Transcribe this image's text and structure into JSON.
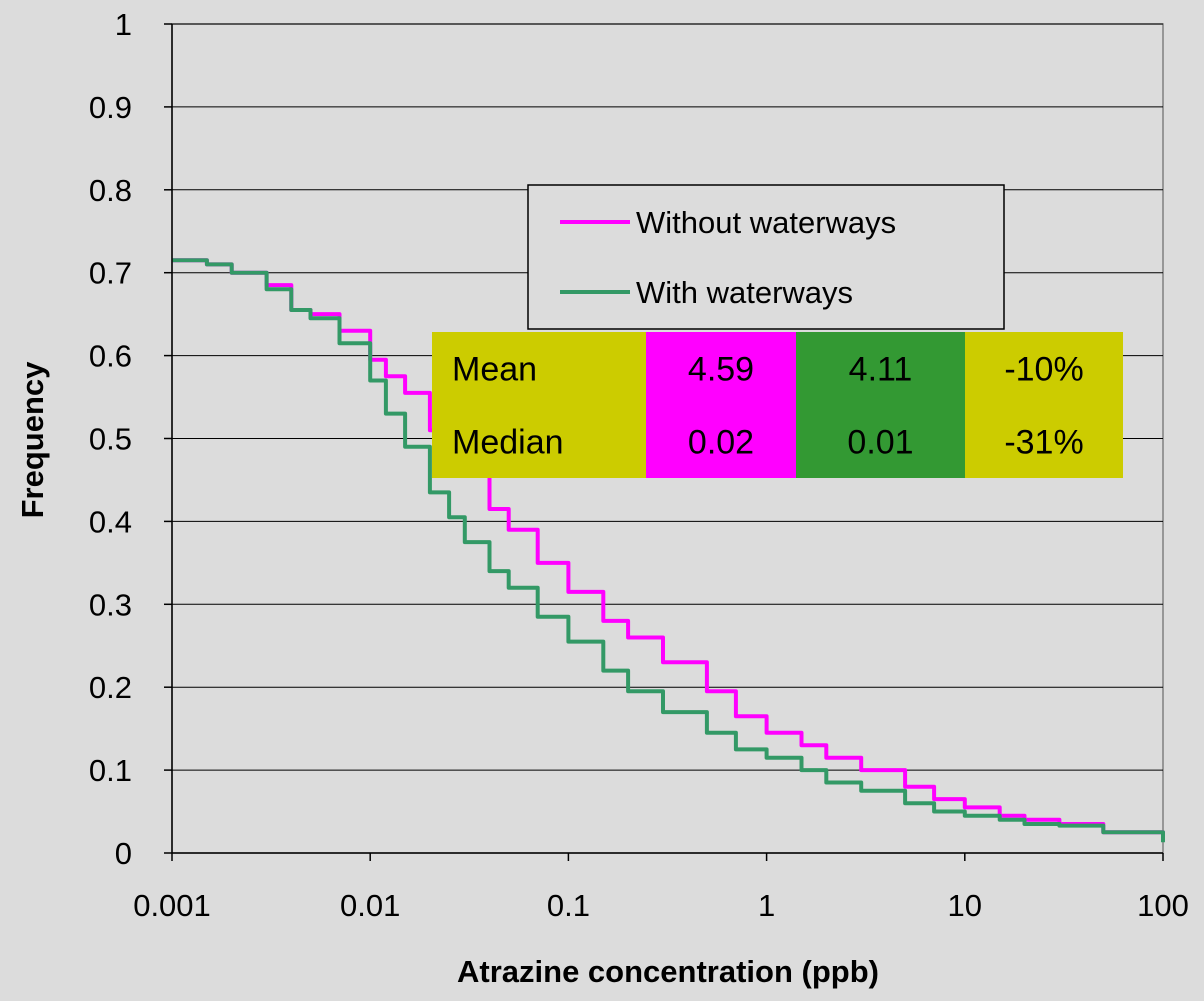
{
  "chart_data": {
    "type": "line",
    "xlabel": "Atrazine concentration (ppb)",
    "ylabel": "Frequency",
    "x_scale": "log",
    "xlim": [
      0.001,
      100
    ],
    "ylim": [
      0,
      1
    ],
    "x_ticks": [
      "0.001",
      "0.01",
      "0.1",
      "1",
      "10",
      "100"
    ],
    "y_ticks": [
      "0",
      "0.1",
      "0.2",
      "0.3",
      "0.4",
      "0.5",
      "0.6",
      "0.7",
      "0.8",
      "0.9",
      "1"
    ],
    "grid": "horizontal",
    "background_color": "#dcdcdc",
    "legend_position": "top-center",
    "series": [
      {
        "name": "Without waterways",
        "color": "#ff00ff",
        "points": [
          [
            0.001,
            0.715
          ],
          [
            0.0015,
            0.71
          ],
          [
            0.002,
            0.7
          ],
          [
            0.003,
            0.685
          ],
          [
            0.004,
            0.655
          ],
          [
            0.005,
            0.65
          ],
          [
            0.007,
            0.63
          ],
          [
            0.01,
            0.595
          ],
          [
            0.012,
            0.575
          ],
          [
            0.015,
            0.555
          ],
          [
            0.02,
            0.51
          ],
          [
            0.025,
            0.48
          ],
          [
            0.03,
            0.455
          ],
          [
            0.04,
            0.415
          ],
          [
            0.05,
            0.39
          ],
          [
            0.07,
            0.35
          ],
          [
            0.1,
            0.315
          ],
          [
            0.15,
            0.28
          ],
          [
            0.2,
            0.26
          ],
          [
            0.3,
            0.23
          ],
          [
            0.5,
            0.195
          ],
          [
            0.7,
            0.165
          ],
          [
            1,
            0.145
          ],
          [
            1.5,
            0.13
          ],
          [
            2,
            0.115
          ],
          [
            3,
            0.1
          ],
          [
            5,
            0.08
          ],
          [
            7,
            0.065
          ],
          [
            10,
            0.055
          ],
          [
            15,
            0.045
          ],
          [
            20,
            0.04
          ],
          [
            30,
            0.035
          ],
          [
            50,
            0.025
          ],
          [
            100,
            0.015
          ]
        ]
      },
      {
        "name": "With waterways",
        "color": "#339966",
        "points": [
          [
            0.001,
            0.715
          ],
          [
            0.0015,
            0.71
          ],
          [
            0.002,
            0.7
          ],
          [
            0.003,
            0.68
          ],
          [
            0.004,
            0.655
          ],
          [
            0.005,
            0.645
          ],
          [
            0.007,
            0.615
          ],
          [
            0.01,
            0.57
          ],
          [
            0.012,
            0.53
          ],
          [
            0.015,
            0.49
          ],
          [
            0.02,
            0.435
          ],
          [
            0.025,
            0.405
          ],
          [
            0.03,
            0.375
          ],
          [
            0.04,
            0.34
          ],
          [
            0.05,
            0.32
          ],
          [
            0.07,
            0.285
          ],
          [
            0.1,
            0.255
          ],
          [
            0.15,
            0.22
          ],
          [
            0.2,
            0.195
          ],
          [
            0.3,
            0.17
          ],
          [
            0.5,
            0.145
          ],
          [
            0.7,
            0.125
          ],
          [
            1,
            0.115
          ],
          [
            1.5,
            0.1
          ],
          [
            2,
            0.085
          ],
          [
            3,
            0.075
          ],
          [
            5,
            0.06
          ],
          [
            7,
            0.05
          ],
          [
            10,
            0.045
          ],
          [
            15,
            0.04
          ],
          [
            20,
            0.035
          ],
          [
            30,
            0.033
          ],
          [
            50,
            0.025
          ],
          [
            100,
            0.013
          ]
        ]
      }
    ],
    "stats_table": {
      "rows": [
        {
          "label": "Mean",
          "without": "4.59",
          "with": "4.11",
          "change": "-10%"
        },
        {
          "label": "Median",
          "without": "0.02",
          "with": "0.01",
          "change": "-31%"
        }
      ],
      "colors": {
        "label_bg": "#cccc00",
        "without_bg": "#ff00ff",
        "with_bg": "#339933",
        "change_bg": "#cccc00"
      }
    }
  }
}
